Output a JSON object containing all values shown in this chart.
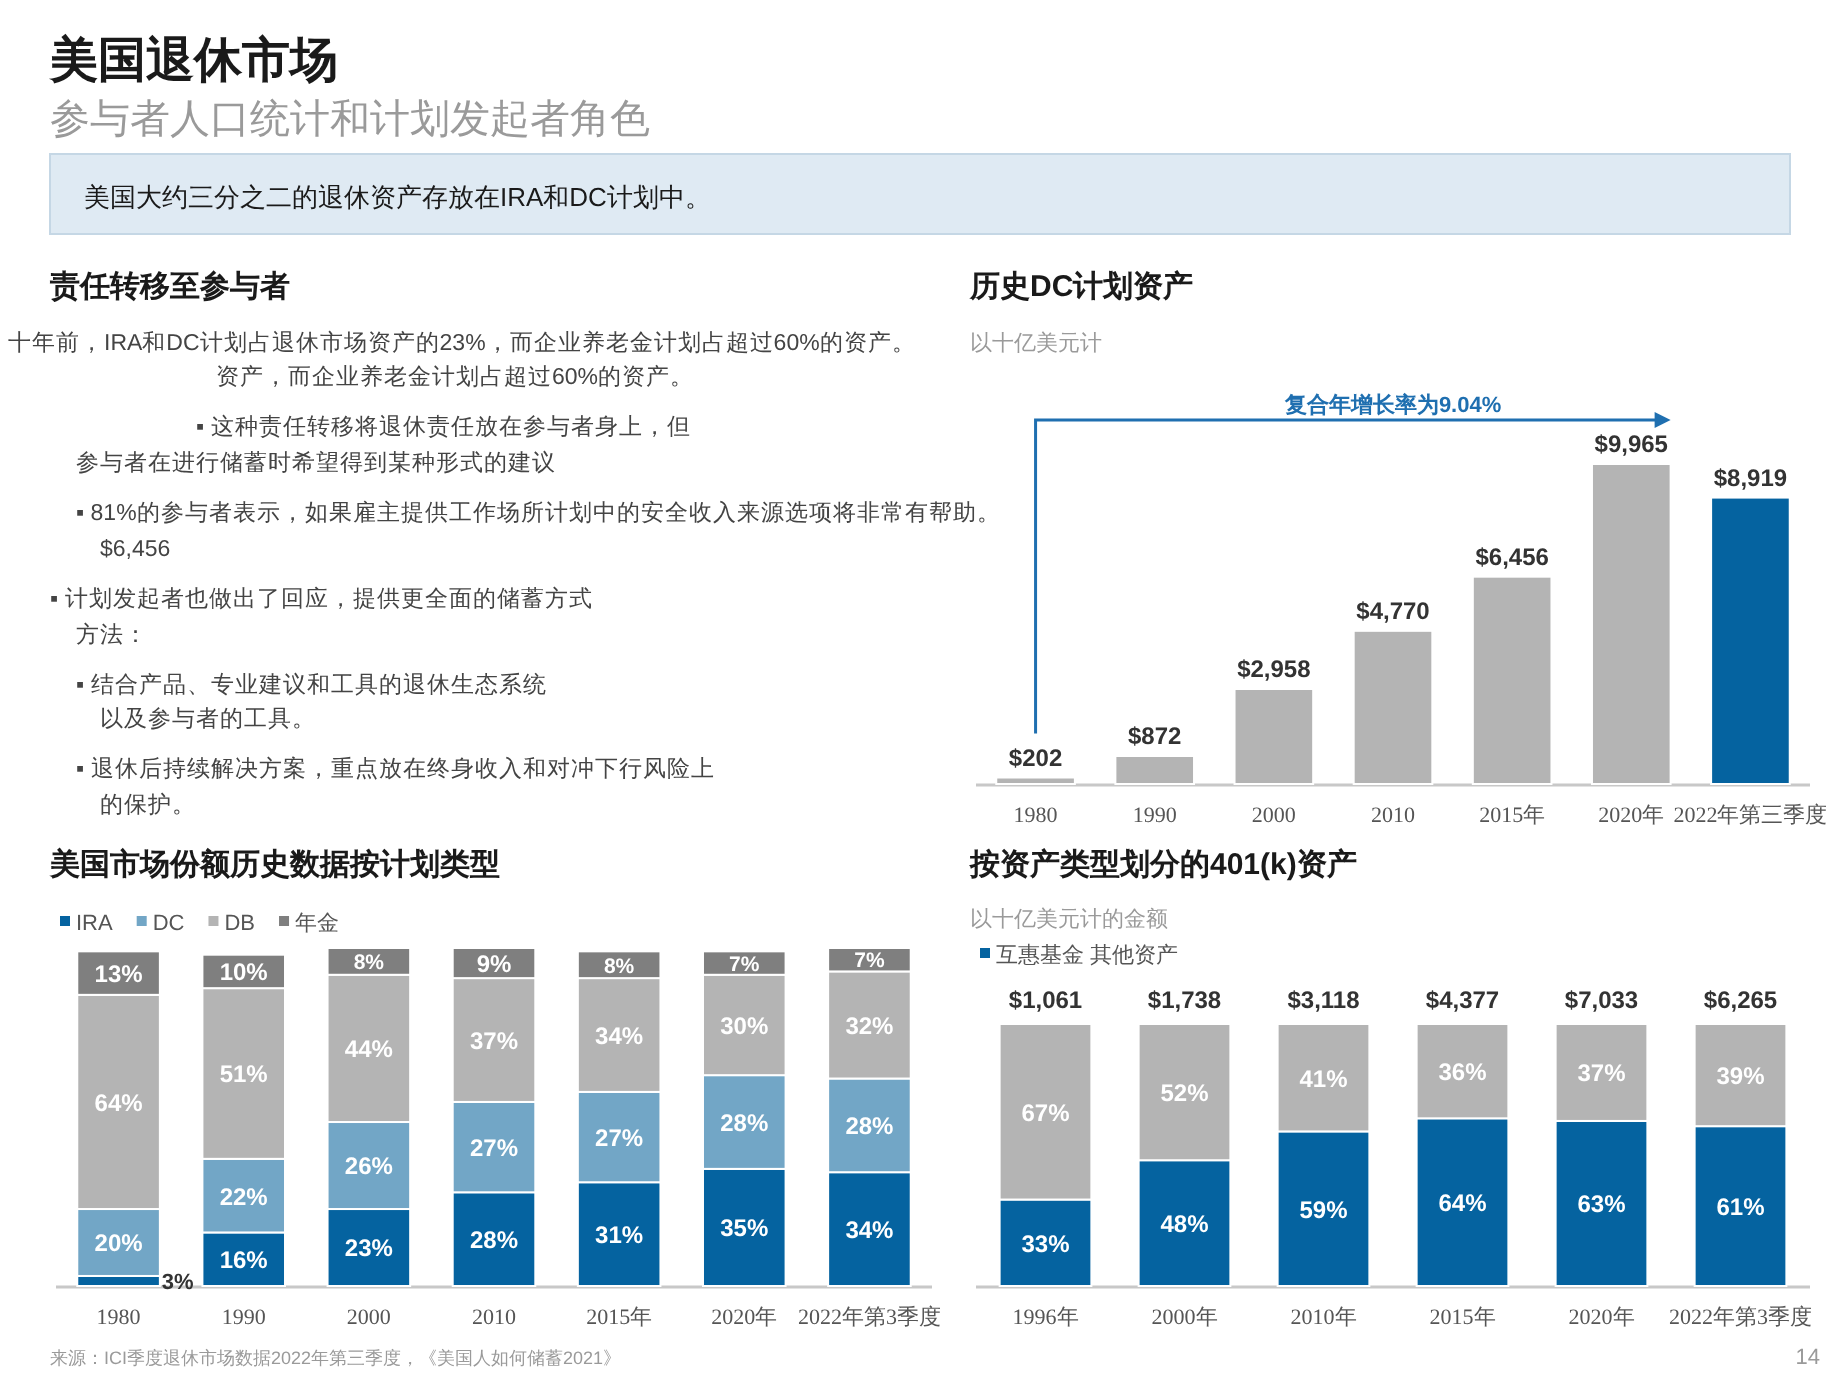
{
  "chart_data": [
    {
      "type": "other",
      "title": "美国退休市场",
      "subtitle": "参与者人口统计和计划发起者角色",
      "annotations": [
        "美国大约三分之二的退休资产存放在IRA和DC计划中。",
        "责任转移至参与者",
        "十年前，IRA和DC计划占退休市场资产的23%，而企业养老金计划占超过60%的资产。",
        "资产，而企业养老金计划占超过60%的资产。",
        "▪ 这种责任转移将退休责任放在参与者身上，但",
        "参与者在进行储蓄时希望得到某种形式的建议",
        "▪ 81%的参与者表示，如果雇主提供工作场所计划中的安全收入来源选项将非常有帮助。",
        "$6,456",
        "▪ 计划发起者也做出了回应，提供更全面的储蓄方式",
        "方法：",
        "▪ 结合产品、专业建议和工具的退休生态系统",
        "以及参与者的工具。",
        "▪ 退休后持续解决方案，重点放在终身收入和对冲下行风险上",
        "的保护。",
        "来源：ICI季度退休市场数据2022年第三季度，《美国人如何储蓄2021》",
        "14"
      ]
    },
    {
      "type": "bar",
      "title": "历史DC计划资产",
      "subtitle": "以十亿美元计",
      "categories": [
        "1980",
        "1990",
        "2000",
        "2010",
        "2015年",
        "2020年",
        "2022年第三季度"
      ],
      "values": [
        202,
        872,
        2958,
        4770,
        6456,
        9965,
        8919
      ],
      "colors": [
        "#b4b4b4",
        "#b4b4b4",
        "#b4b4b4",
        "#b4b4b4",
        "#b4b4b4",
        "#b4b4b4",
        "#0563a0"
      ],
      "value_labels": [
        "$202",
        "$872",
        "$2,958",
        "$4,770",
        "$6,456",
        "$9,965",
        "$8,919"
      ],
      "annotations": [
        "复合年增长率为9.04%"
      ]
    },
    {
      "type": "bar",
      "title": "美国市场份额历史数据按计划类型",
      "stacked": true,
      "legend": "top left",
      "categories": [
        "1980",
        "1990",
        "2000",
        "2010",
        "2015年",
        "2020年",
        "2022年第3季度"
      ],
      "series": [
        {
          "name": "IRA",
          "color": "#0563a0",
          "values": [
            3,
            16,
            23,
            28,
            31,
            35,
            34
          ],
          "value_labels": [
            "3%",
            "16%",
            "23%",
            "28%",
            "31%",
            "35%",
            "34%"
          ]
        },
        {
          "name": "DC",
          "color": "#72a6c6",
          "values": [
            20,
            22,
            26,
            27,
            27,
            28,
            28
          ],
          "value_labels": [
            "20%",
            "22%",
            "26%",
            "27%",
            "27%",
            "28%",
            "28%"
          ]
        },
        {
          "name": "DB",
          "color": "#b4b4b4",
          "values": [
            64,
            51,
            44,
            37,
            34,
            30,
            32
          ],
          "value_labels": [
            "64%",
            "51%",
            "44%",
            "37%",
            "34%",
            "30%",
            "32%"
          ]
        },
        {
          "name": "年金",
          "color": "#7f7f7f",
          "values": [
            13,
            10,
            8,
            9,
            8,
            7,
            7
          ],
          "value_labels": [
            "13%",
            "10%",
            "8%",
            "9%",
            "8%",
            "7%",
            "7%"
          ]
        }
      ]
    },
    {
      "type": "bar",
      "title": "按资产类型划分的401(k)资产",
      "subtitle": "以十亿美元计的金额",
      "stacked": true,
      "legend": "top left",
      "categories": [
        "1996年",
        "2000年",
        "2010年",
        "2015年",
        "2020年",
        "2022年第3季度"
      ],
      "annotations": [
        "$1,061",
        "$1,738",
        "$3,118",
        "$4,377",
        "$7,033",
        "$6,265"
      ],
      "series": [
        {
          "name": "互惠基金 其他资产",
          "color": "#0563a0",
          "values": [
            33,
            48,
            59,
            64,
            63,
            61
          ],
          "value_labels": [
            "33%",
            "48%",
            "59%",
            "64%",
            "63%",
            "61%"
          ]
        },
        {
          "color": "#b4b4b4",
          "values": [
            67,
            52,
            41,
            36,
            37,
            39
          ],
          "value_labels": [
            "67%",
            "52%",
            "41%",
            "36%",
            "37%",
            "39%"
          ]
        }
      ]
    }
  ]
}
